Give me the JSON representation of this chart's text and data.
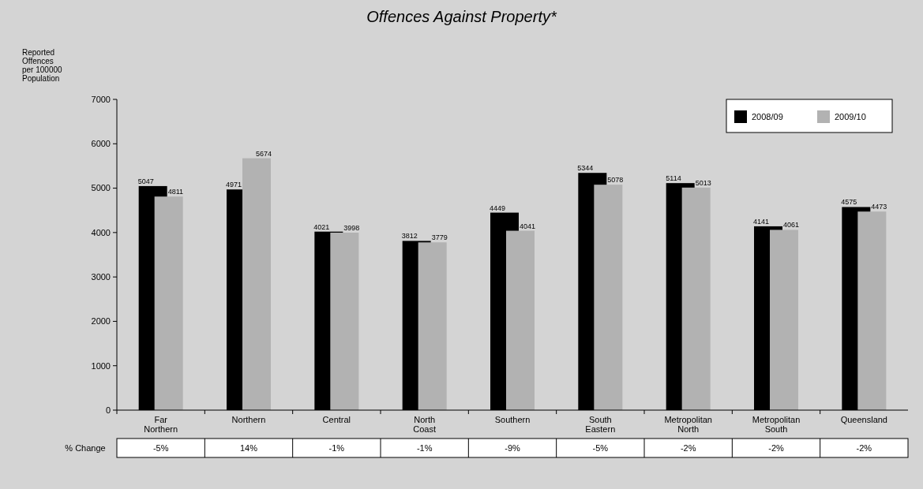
{
  "chart_data": {
    "type": "bar",
    "title": "Offences Against Property*",
    "ylabel": "Reported Offences per 100000 Population",
    "categories": [
      "Far Northern",
      "Northern",
      "Central",
      "North Coast",
      "Southern",
      "South Eastern",
      "Metropolitan North",
      "Metropolitan South",
      "Queensland"
    ],
    "series": [
      {
        "name": "2008/09",
        "color": "#000000",
        "values": [
          5047,
          4971,
          4021,
          3812,
          4449,
          5344,
          5114,
          4141,
          4575
        ]
      },
      {
        "name": "2009/10",
        "color": "#b2b2b2",
        "values": [
          4811,
          5674,
          3998,
          3779,
          4041,
          5078,
          5013,
          4061,
          4473
        ]
      }
    ],
    "ylim": [
      0,
      7000
    ],
    "yticks": [
      0,
      1000,
      2000,
      3000,
      4000,
      5000,
      6000,
      7000
    ],
    "grid": false,
    "legend": "top right",
    "data_labels": true,
    "annotations": [
      "% Change",
      "-5%",
      "14%",
      "-1%",
      "-1%",
      "-9%",
      "-5%",
      "-2%",
      "-2%",
      "-2%"
    ]
  }
}
